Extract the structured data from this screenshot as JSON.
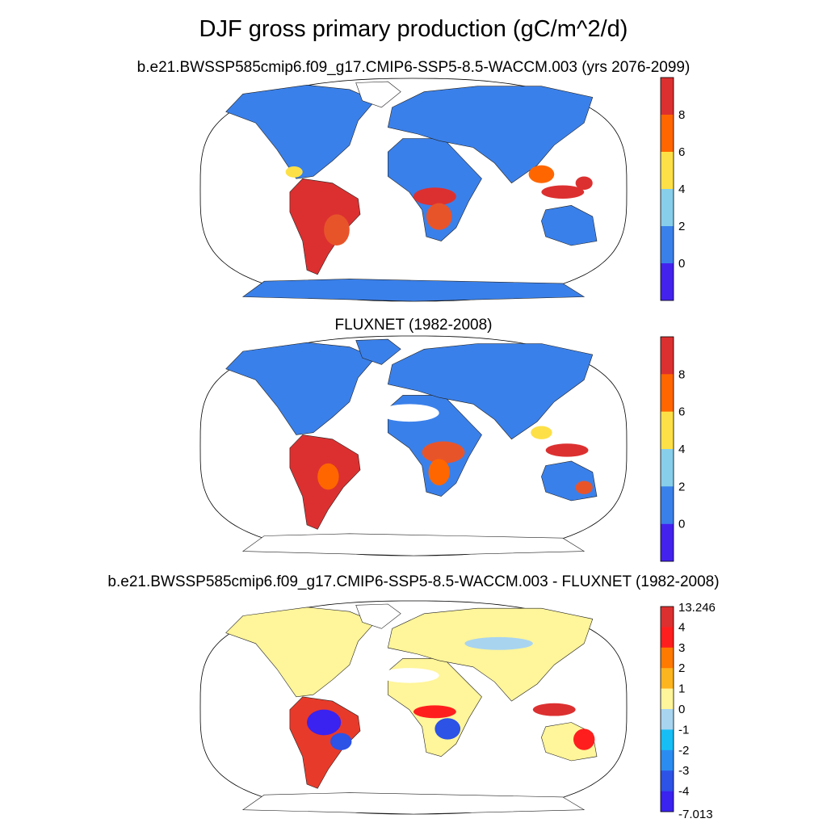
{
  "title": "DJF gross primary production (gC/m^2/d)",
  "panels": [
    {
      "id": "model",
      "subtitle": "b.e21.BWSSP585cmip6.f09_g17.CMIP6-SSP5-8.5-WACCM.003 (yrs 2076-2099)",
      "colorbar": {
        "labels": [
          "8",
          "6",
          "4",
          "2",
          "0"
        ],
        "colors": [
          "#dc3030",
          "#ff6600",
          "#fde047",
          "#87ceeb",
          "#3a80ea",
          "#4422ee"
        ]
      }
    },
    {
      "id": "obs",
      "subtitle": "FLUXNET (1982-2008)",
      "colorbar": {
        "labels": [
          "8",
          "6",
          "4",
          "2",
          "0"
        ],
        "colors": [
          "#dc3030",
          "#ff6600",
          "#fde047",
          "#87ceeb",
          "#3a80ea",
          "#4422ee"
        ]
      }
    },
    {
      "id": "diff",
      "subtitle": "b.e21.BWSSP585cmip6.f09_g17.CMIP6-SSP5-8.5-WACCM.003 - FLUXNET (1982-2008)",
      "colorbar": {
        "labels": [
          "13.246",
          "4",
          "3",
          "2",
          "1",
          "0",
          "-1",
          "-2",
          "-3",
          "-4",
          "-7.013"
        ],
        "colors": [
          "#dc3030",
          "#ff1e1e",
          "#ff7a00",
          "#fcb41f",
          "#fff59a",
          "#a8d4f0",
          "#16bef5",
          "#2a8cf0",
          "#2c52e6",
          "#3a22f0"
        ]
      }
    }
  ]
}
